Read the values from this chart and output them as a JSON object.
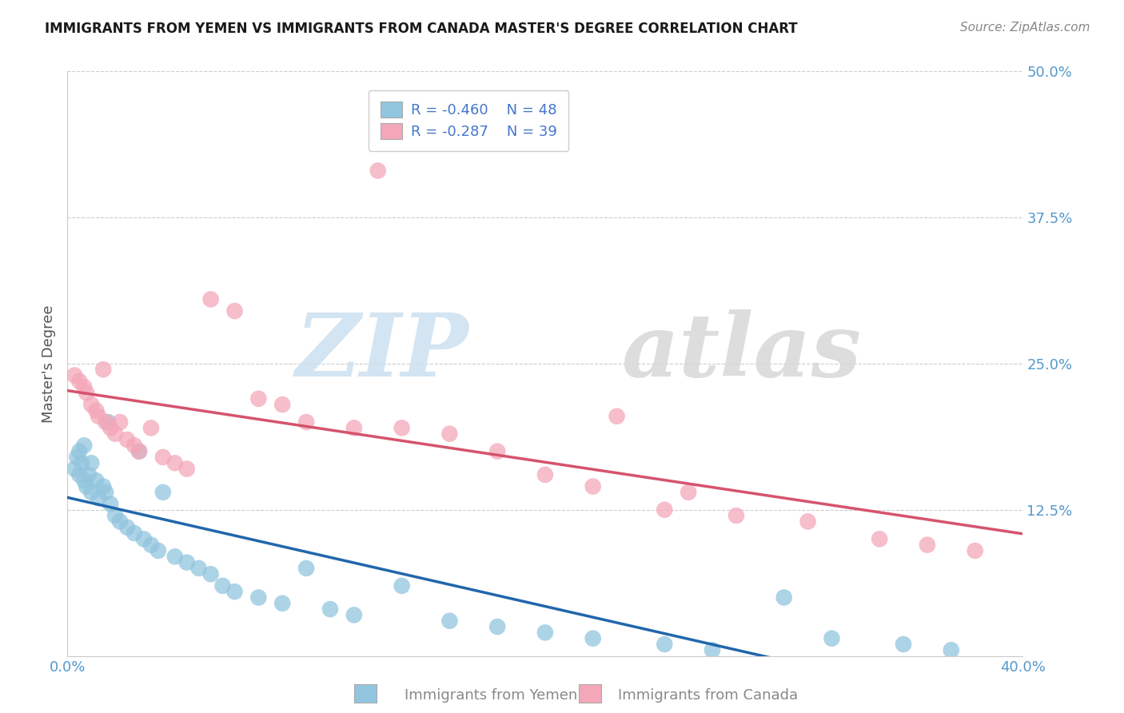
{
  "title": "IMMIGRANTS FROM YEMEN VS IMMIGRANTS FROM CANADA MASTER'S DEGREE CORRELATION CHART",
  "source": "Source: ZipAtlas.com",
  "xlabel_blue": "Immigrants from Yemen",
  "xlabel_pink": "Immigrants from Canada",
  "ylabel": "Master's Degree",
  "xlim": [
    0.0,
    0.4
  ],
  "ylim": [
    0.0,
    0.5
  ],
  "xtick_vals": [
    0.0,
    0.1,
    0.2,
    0.3,
    0.4
  ],
  "xtick_labels": [
    "0.0%",
    "",
    "",
    "",
    "40.0%"
  ],
  "ytick_vals": [
    0.0,
    0.125,
    0.25,
    0.375,
    0.5
  ],
  "ytick_labels": [
    "",
    "12.5%",
    "25.0%",
    "37.5%",
    "50.0%"
  ],
  "legend_line1": "R = -0.460   N = 48",
  "legend_line2": "R = -0.287   N = 39",
  "blue_color": "#92c5de",
  "pink_color": "#f4a7b9",
  "blue_line_color": "#2166ac",
  "pink_line_color": "#d6536d",
  "background_color": "#ffffff",
  "grid_color": "#cccccc",
  "title_color": "#1a1a1a",
  "tick_color": "#5599cc",
  "ylabel_color": "#555555",
  "source_color": "#888888",
  "legend_text_color": "#4477cc",
  "watermark_zip_color": "#cce0f0",
  "watermark_atlas_color": "#d8d8d8",
  "blue_x": [
    0.003,
    0.004,
    0.005,
    0.005,
    0.006,
    0.007,
    0.007,
    0.008,
    0.009,
    0.01,
    0.01,
    0.012,
    0.013,
    0.015,
    0.016,
    0.017,
    0.018,
    0.02,
    0.022,
    0.025,
    0.028,
    0.03,
    0.032,
    0.035,
    0.038,
    0.04,
    0.045,
    0.05,
    0.055,
    0.06,
    0.065,
    0.07,
    0.08,
    0.09,
    0.1,
    0.11,
    0.12,
    0.14,
    0.16,
    0.18,
    0.2,
    0.22,
    0.25,
    0.27,
    0.3,
    0.32,
    0.35,
    0.37
  ],
  "blue_y": [
    0.16,
    0.17,
    0.155,
    0.175,
    0.165,
    0.15,
    0.18,
    0.145,
    0.155,
    0.14,
    0.165,
    0.15,
    0.135,
    0.145,
    0.14,
    0.2,
    0.13,
    0.12,
    0.115,
    0.11,
    0.105,
    0.175,
    0.1,
    0.095,
    0.09,
    0.14,
    0.085,
    0.08,
    0.075,
    0.07,
    0.06,
    0.055,
    0.05,
    0.045,
    0.075,
    0.04,
    0.035,
    0.06,
    0.03,
    0.025,
    0.02,
    0.015,
    0.01,
    0.005,
    0.05,
    0.015,
    0.01,
    0.005
  ],
  "pink_x": [
    0.003,
    0.005,
    0.007,
    0.008,
    0.01,
    0.012,
    0.013,
    0.015,
    0.016,
    0.018,
    0.02,
    0.022,
    0.025,
    0.028,
    0.03,
    0.035,
    0.04,
    0.045,
    0.05,
    0.06,
    0.07,
    0.08,
    0.09,
    0.1,
    0.12,
    0.14,
    0.16,
    0.18,
    0.2,
    0.22,
    0.25,
    0.28,
    0.31,
    0.34,
    0.36,
    0.38,
    0.13,
    0.23,
    0.26
  ],
  "pink_y": [
    0.24,
    0.235,
    0.23,
    0.225,
    0.215,
    0.21,
    0.205,
    0.245,
    0.2,
    0.195,
    0.19,
    0.2,
    0.185,
    0.18,
    0.175,
    0.195,
    0.17,
    0.165,
    0.16,
    0.305,
    0.295,
    0.22,
    0.215,
    0.2,
    0.195,
    0.195,
    0.19,
    0.175,
    0.155,
    0.145,
    0.125,
    0.12,
    0.115,
    0.1,
    0.095,
    0.09,
    0.415,
    0.205,
    0.14
  ]
}
